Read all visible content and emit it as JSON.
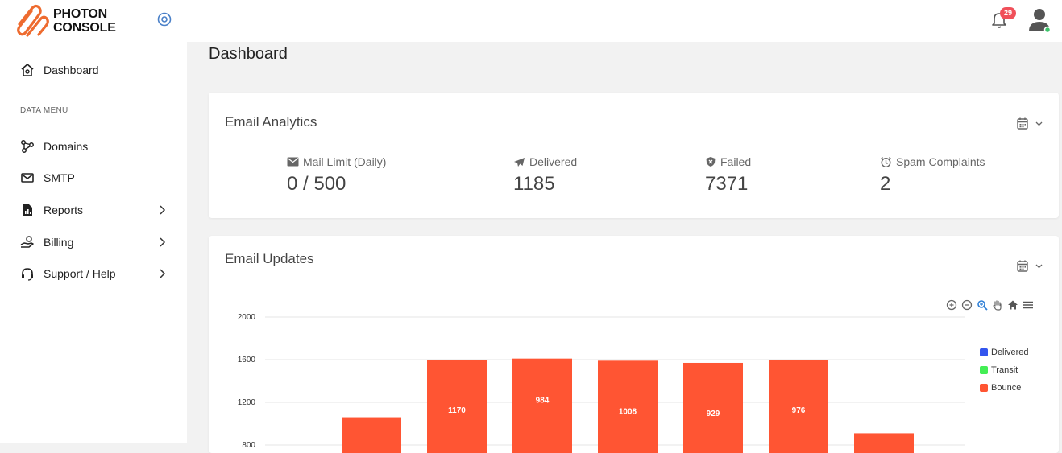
{
  "app": {
    "brand_line1": "PHOTON",
    "brand_line2": "CONSOLE",
    "notification_count": "29",
    "accent": "#ee6b2f"
  },
  "sidebar": {
    "dashboard": "Dashboard",
    "section_title": "DATA MENU",
    "items": [
      {
        "label": "Domains",
        "icon": "share-nodes-icon"
      },
      {
        "label": "SMTP",
        "icon": "envelope-icon"
      },
      {
        "label": "Reports",
        "icon": "report-icon"
      },
      {
        "label": "Billing",
        "icon": "hand-coin-icon"
      },
      {
        "label": "Support / Help",
        "icon": "headset-icon"
      }
    ]
  },
  "page": {
    "title": "Dashboard"
  },
  "analytics": {
    "title": "Email Analytics",
    "stats": [
      {
        "label": "Mail Limit (Daily)",
        "value": "0 / 500",
        "icon": "envelope-icon"
      },
      {
        "label": "Delivered",
        "value": "1185",
        "icon": "paper-plane-icon"
      },
      {
        "label": "Failed",
        "value": "7371",
        "icon": "shield-x-icon"
      },
      {
        "label": "Spam Complaints",
        "value": "2",
        "icon": "alarm-icon"
      }
    ]
  },
  "updates": {
    "title": "Email Updates"
  },
  "chart_data": {
    "type": "bar",
    "stacked": true,
    "y_ticks": [
      "2000",
      "1600",
      "1200",
      "800"
    ],
    "ylim": [
      0,
      2000
    ],
    "series": [
      {
        "name": "Delivered",
        "color": "#3355ee"
      },
      {
        "name": "Transit",
        "color": "#44ee55"
      },
      {
        "name": "Bounce",
        "color": "#ff5533"
      }
    ],
    "bars": [
      {
        "total": 1060,
        "label": ""
      },
      {
        "total": 1600,
        "label": "1170"
      },
      {
        "total": 1610,
        "label": "984"
      },
      {
        "total": 1590,
        "label": "1008"
      },
      {
        "total": 1570,
        "label": "929"
      },
      {
        "total": 1600,
        "label": "976"
      },
      {
        "total": 910,
        "label": ""
      }
    ],
    "legend_position": "right",
    "grid": true
  }
}
